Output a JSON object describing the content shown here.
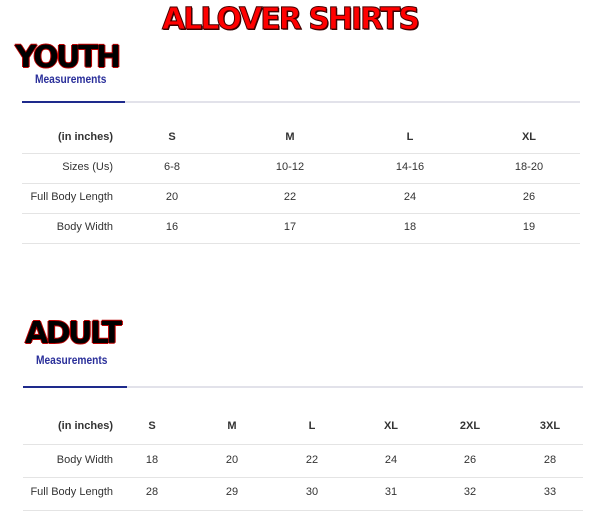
{
  "title": "ALLOVER SHIRTS",
  "youth": {
    "heading": "YOUTH",
    "subheading": "Measurements",
    "columns": [
      "(in inches)",
      "S",
      "M",
      "L",
      "XL"
    ],
    "rows": [
      [
        "Sizes (Us)",
        "6-8",
        "10-12",
        "14-16",
        "18-20"
      ],
      [
        "Full Body Length",
        "20",
        "22",
        "24",
        "26"
      ],
      [
        "Body Width",
        "16",
        "17",
        "18",
        "19"
      ]
    ]
  },
  "adult": {
    "heading": "ADULT",
    "subheading": "Measurements",
    "columns": [
      "(in inches)",
      "S",
      "M",
      "L",
      "XL",
      "2XL",
      "3XL"
    ],
    "rows": [
      [
        "Body Width",
        "18",
        "20",
        "22",
        "24",
        "26",
        "28"
      ],
      [
        "Full Body Length",
        "28",
        "29",
        "30",
        "31",
        "32",
        "33"
      ]
    ]
  },
  "colors": {
    "title": "#ff0000",
    "subheading": "#2a2f9a",
    "accent_line": "#1e2a8c"
  }
}
